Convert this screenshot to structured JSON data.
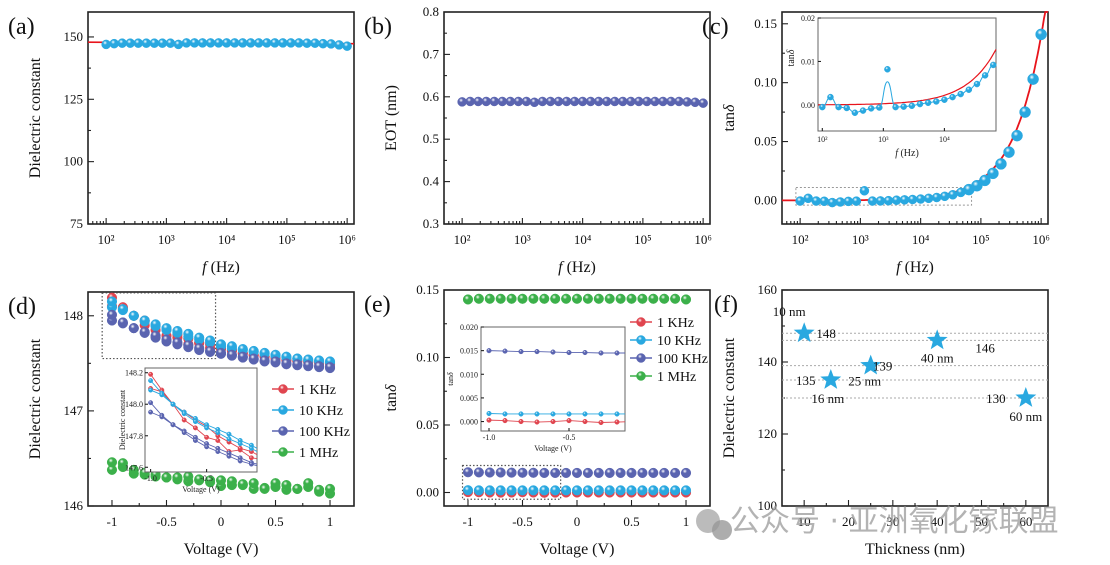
{
  "colors": {
    "blue": "#29a8e0",
    "navy": "#5a64b0",
    "red": "#e0454f",
    "green": "#3bb04a",
    "fit": "#e8141c",
    "grid": "#aaaaaa"
  },
  "watermark": "公众号 · 亚洲氧化镓联盟",
  "chart_data": [
    {
      "panel": "(a)",
      "type": "scatter",
      "xscale": "log",
      "xlabel": "f (Hz)",
      "ylabel": "Dielectric constant",
      "xlim": [
        50,
        1300000
      ],
      "ylim": [
        75,
        160
      ],
      "xticks": [
        {
          "v": 100,
          "label": "10²"
        },
        {
          "v": 1000,
          "label": "10³"
        },
        {
          "v": 10000,
          "label": "10⁴"
        },
        {
          "v": 100000,
          "label": "10⁵"
        },
        {
          "v": 1000000,
          "label": "10⁶"
        }
      ],
      "yticks": [
        75,
        100,
        125,
        150
      ],
      "series": [
        {
          "name": "data",
          "color": "#29a8e0",
          "x_log_range": [
            2,
            6
          ],
          "n": 31,
          "values": [
            147,
            147.3,
            147.5,
            147.5,
            147.5,
            147.5,
            147.5,
            147.5,
            147.5,
            147,
            147.6,
            147.6,
            147.6,
            147.6,
            147.6,
            147.6,
            147.6,
            147.6,
            147.6,
            147.6,
            147.6,
            147.6,
            147.6,
            147.6,
            147.6,
            147.5,
            147.5,
            147.3,
            147.2,
            146.8,
            146.3
          ]
        }
      ],
      "fit": {
        "value": 147.5,
        "color": "#e8141c"
      }
    },
    {
      "panel": "(b)",
      "type": "scatter",
      "xscale": "log",
      "xlabel": "f (Hz)",
      "ylabel": "EOT (nm)",
      "xlim": [
        50,
        1300000
      ],
      "ylim": [
        0.3,
        0.8
      ],
      "xticks": [
        {
          "v": 100,
          "label": "10²"
        },
        {
          "v": 1000,
          "label": "10³"
        },
        {
          "v": 10000,
          "label": "10⁴"
        },
        {
          "v": 100000,
          "label": "10⁵"
        },
        {
          "v": 1000000,
          "label": "10⁶"
        }
      ],
      "yticks": [
        0.3,
        0.4,
        0.5,
        0.6,
        0.7,
        0.8
      ],
      "series": [
        {
          "name": "data",
          "color": "#5a64b0",
          "x_log_range": [
            2,
            6
          ],
          "n": 31,
          "values": [
            0.588,
            0.589,
            0.589,
            0.589,
            0.589,
            0.589,
            0.589,
            0.589,
            0.589,
            0.587,
            0.589,
            0.589,
            0.589,
            0.589,
            0.589,
            0.589,
            0.589,
            0.589,
            0.589,
            0.589,
            0.589,
            0.589,
            0.589,
            0.589,
            0.589,
            0.589,
            0.589,
            0.589,
            0.588,
            0.587,
            0.585
          ]
        }
      ]
    },
    {
      "panel": "(c)",
      "type": "scatter",
      "xscale": "log",
      "xlabel": "f (Hz)",
      "ylabel": "tanδ",
      "xlim": [
        50,
        1300000
      ],
      "ylim": [
        -0.02,
        0.16
      ],
      "xticks": [
        {
          "v": 100,
          "label": "10²"
        },
        {
          "v": 1000,
          "label": "10³"
        },
        {
          "v": 10000,
          "label": "10⁴"
        },
        {
          "v": 100000,
          "label": "10⁵"
        },
        {
          "v": 1000000,
          "label": "10⁶"
        }
      ],
      "yticks": [
        {
          "v": 0,
          "label": "0.00"
        },
        {
          "v": 0.05,
          "label": "0.05"
        },
        {
          "v": 0.1,
          "label": "0.10"
        },
        {
          "v": 0.15,
          "label": "0.15"
        }
      ],
      "series": [
        {
          "name": "data",
          "color": "#29a8e0",
          "x_log_range": [
            2,
            6
          ],
          "n": 31,
          "values": [
            -0.0005,
            0.0018,
            -0.0005,
            -0.0007,
            -0.0018,
            -0.0013,
            -0.0008,
            -0.0006,
            0.0082,
            -0.0005,
            -0.0004,
            -0.0002,
            0.0002,
            0.0005,
            0.0008,
            0.0012,
            0.0018,
            0.0025,
            0.0035,
            0.0048,
            0.0068,
            0.0092,
            0.0125,
            0.017,
            0.023,
            0.031,
            0.041,
            0.055,
            0.075,
            0.103,
            0.141
          ]
        }
      ],
      "fit": {
        "type": "power",
        "color": "#e8141c",
        "coef": 0.14,
        "ref_freq": 1000000,
        "exponent": 0.9
      },
      "zoom_box": {
        "x": [
          85,
          70000
        ],
        "y": [
          -0.004,
          0.011
        ]
      },
      "inset": {
        "xlabel": "f (Hz)",
        "ylabel": "tanδ",
        "xlim": [
          85,
          70000
        ],
        "ylim": [
          -0.006,
          0.02
        ],
        "xticks": [
          {
            "v": 100,
            "label": "10²"
          },
          {
            "v": 1000,
            "label": "10³"
          },
          {
            "v": 10000,
            "label": "10⁴"
          }
        ],
        "yticks": [
          {
            "v": 0,
            "label": "0.00"
          },
          {
            "v": 0.01,
            "label": "0.01"
          },
          {
            "v": 0.02,
            "label": "0.02"
          }
        ]
      }
    },
    {
      "panel": "(d)",
      "type": "scatter",
      "xlabel": "Voltage (V)",
      "ylabel": "Dielectric constant",
      "xlim": [
        -1.22,
        1.22
      ],
      "ylim": [
        146,
        148.25
      ],
      "xticks": [
        -1.0,
        -0.5,
        0.0,
        0.5,
        1.0
      ],
      "yticks": [
        146,
        147,
        148
      ],
      "x": [
        -1.0,
        -0.9,
        -0.8,
        -0.7,
        -0.6,
        -0.5,
        -0.4,
        -0.3,
        -0.2,
        -0.1,
        0.0,
        0.1,
        0.2,
        0.3,
        0.4,
        0.5,
        0.6,
        0.7,
        0.8,
        0.9,
        1.0
      ],
      "series": [
        {
          "name": "1 KHz",
          "color": "#e0454f",
          "fwd": [
            148.19,
            148.09,
            148.0,
            147.9,
            147.85,
            147.79,
            147.77,
            147.7,
            147.71,
            147.66,
            147.65,
            147.63,
            147.6,
            147.58,
            147.57,
            147.55,
            147.53,
            147.52,
            147.51,
            147.5,
            147.49
          ],
          "rev": [
            148.1,
            148.08,
            148.0,
            147.95,
            147.9,
            147.86,
            147.8,
            147.76,
            147.72,
            147.7,
            147.66,
            147.64,
            147.61,
            147.59,
            147.57,
            147.56,
            147.54,
            147.53,
            147.52,
            147.51,
            147.5
          ]
        },
        {
          "name": "10 KHz",
          "color": "#29a8e0",
          "fwd": [
            148.15,
            148.07,
            148.0,
            147.95,
            147.91,
            147.87,
            147.84,
            147.81,
            147.77,
            147.74,
            147.7,
            147.68,
            147.65,
            147.63,
            147.61,
            147.59,
            147.57,
            147.55,
            147.54,
            147.53,
            147.52
          ],
          "rev": [
            148.09,
            148.06,
            148.0,
            147.94,
            147.89,
            147.85,
            147.82,
            147.78,
            147.75,
            147.72,
            147.68,
            147.66,
            147.64,
            147.62,
            147.6,
            147.58,
            147.56,
            147.55,
            147.53,
            147.52,
            147.51
          ]
        },
        {
          "name": "100 KHz",
          "color": "#5a64b0",
          "fwd": [
            148.01,
            147.93,
            147.87,
            147.83,
            147.79,
            147.75,
            147.72,
            147.69,
            147.66,
            147.63,
            147.61,
            147.59,
            147.57,
            147.55,
            147.53,
            147.52,
            147.5,
            147.49,
            147.48,
            147.47,
            147.46
          ],
          "rev": [
            147.95,
            147.92,
            147.87,
            147.82,
            147.77,
            147.73,
            147.7,
            147.67,
            147.64,
            147.62,
            147.6,
            147.58,
            147.56,
            147.54,
            147.52,
            147.51,
            147.49,
            147.48,
            147.47,
            147.46,
            147.45
          ]
        },
        {
          "name": "1 MHz",
          "color": "#3bb04a",
          "fwd": [
            146.46,
            146.45,
            146.38,
            146.35,
            146.33,
            146.3,
            146.3,
            146.31,
            146.28,
            146.27,
            146.27,
            146.26,
            146.23,
            146.24,
            146.18,
            146.24,
            146.22,
            146.18,
            146.24,
            146.17,
            146.18
          ],
          "rev": [
            146.38,
            146.41,
            146.34,
            146.33,
            146.31,
            146.3,
            146.28,
            146.26,
            146.27,
            146.25,
            146.21,
            146.22,
            146.22,
            146.18,
            146.19,
            146.2,
            146.17,
            146.18,
            146.2,
            146.15,
            146.13
          ]
        }
      ],
      "zoom_box": {
        "x": [
          -1.09,
          -0.05
        ],
        "y": [
          147.55,
          148.24
        ]
      },
      "inset": {
        "xlabel": "Voltage (V)",
        "ylabel": "Dielectric constant",
        "xlim": [
          -1.05,
          -0.05
        ],
        "ylim": [
          147.57,
          148.23
        ],
        "xticks": [
          {
            "v": -1.0,
            "label": "-1.0"
          },
          {
            "v": -0.5,
            "label": "-0.5"
          }
        ],
        "yticks": [
          {
            "v": 147.6,
            "label": "147.6"
          },
          {
            "v": 147.8,
            "label": "147.8"
          },
          {
            "v": 148.0,
            "label": "148.0"
          },
          {
            "v": 148.2,
            "label": "148.2"
          }
        ]
      }
    },
    {
      "panel": "(e)",
      "type": "scatter",
      "xlabel": "Voltage (V)",
      "ylabel": "tanδ",
      "xlim": [
        -1.22,
        1.22
      ],
      "ylim": [
        -0.01,
        0.15
      ],
      "xticks": [
        -1.0,
        -0.5,
        0.0,
        0.5,
        1.0
      ],
      "yticks": [
        {
          "v": 0,
          "label": "0.00"
        },
        {
          "v": 0.05,
          "label": "0.05"
        },
        {
          "v": 0.1,
          "label": "0.10"
        },
        {
          "v": 0.15,
          "label": "0.15"
        }
      ],
      "x": [
        -1.0,
        -0.9,
        -0.8,
        -0.7,
        -0.6,
        -0.5,
        -0.4,
        -0.3,
        -0.2,
        -0.1,
        0.0,
        0.1,
        0.2,
        0.3,
        0.4,
        0.5,
        0.6,
        0.7,
        0.8,
        0.9,
        1.0
      ],
      "series": [
        {
          "name": "1 KHz",
          "color": "#e0454f",
          "values": [
            0.0003,
            0.0002,
            0.0,
            -0.0001,
            0.0,
            0.0002,
            0.0,
            -0.0002,
            -0.0001,
            0.0,
            0.0,
            0.0,
            0.0,
            0.0,
            0.0,
            0.0,
            0.0,
            0.0,
            0.0,
            0.0,
            0.0
          ]
        },
        {
          "name": "10 KHz",
          "color": "#29a8e0",
          "values": [
            0.0017,
            0.0016,
            0.0016,
            0.0016,
            0.0016,
            0.0016,
            0.0016,
            0.0016,
            0.0016,
            0.0016,
            0.0016,
            0.0016,
            0.0016,
            0.0016,
            0.0016,
            0.0016,
            0.0016,
            0.0016,
            0.0016,
            0.0016,
            0.0016
          ]
        },
        {
          "name": "100 KHz",
          "color": "#5a64b0",
          "values": [
            0.015,
            0.0149,
            0.0148,
            0.0148,
            0.0147,
            0.0146,
            0.0146,
            0.0145,
            0.0145,
            0.0145,
            0.0145,
            0.0145,
            0.0145,
            0.0145,
            0.0145,
            0.0145,
            0.0145,
            0.0145,
            0.0145,
            0.0145,
            0.0145
          ]
        },
        {
          "name": "1 MHz",
          "color": "#3bb04a",
          "values": [
            0.143,
            0.1435,
            0.1435,
            0.1435,
            0.1435,
            0.1435,
            0.1435,
            0.1435,
            0.1435,
            0.1435,
            0.1435,
            0.1435,
            0.1435,
            0.1435,
            0.1435,
            0.1435,
            0.1435,
            0.1435,
            0.1435,
            0.1435,
            0.143
          ]
        }
      ],
      "zoom_box": {
        "x": [
          -1.05,
          -0.15
        ],
        "y": [
          -0.005,
          0.02
        ]
      },
      "inset": {
        "xlabel": "Voltage (V)",
        "ylabel": "tanδ",
        "xlim": [
          -1.05,
          -0.15
        ],
        "ylim": [
          -0.002,
          0.02
        ],
        "xticks": [
          {
            "v": -1.0,
            "label": "-1.0"
          },
          {
            "v": -0.5,
            "label": "-0.5"
          }
        ],
        "yticks": [
          {
            "v": 0,
            "label": "0.000"
          },
          {
            "v": 0.005,
            "label": "0.005"
          },
          {
            "v": 0.01,
            "label": "0.010"
          },
          {
            "v": 0.015,
            "label": "0.015"
          },
          {
            "v": 0.02,
            "label": "0.020"
          }
        ]
      }
    },
    {
      "panel": "(f)",
      "type": "scatter",
      "xlabel": "Thickness (nm)",
      "ylabel": "Dielectric constant",
      "xlim": [
        5,
        65
      ],
      "ylim": [
        100,
        160
      ],
      "xticks": [
        10,
        20,
        30,
        40,
        50,
        60
      ],
      "yticks": [
        100,
        120,
        140,
        160
      ],
      "points": [
        {
          "x": 10,
          "y": 148,
          "value_label": "148",
          "thickness_label": "10 nm"
        },
        {
          "x": 16,
          "y": 135,
          "value_label": "135",
          "thickness_label": "16 nm"
        },
        {
          "x": 25,
          "y": 139,
          "value_label": "139",
          "thickness_label": "25 nm"
        },
        {
          "x": 40,
          "y": 146,
          "value_label": "146",
          "thickness_label": "40 nm"
        },
        {
          "x": 60,
          "y": 130,
          "value_label": "130",
          "thickness_label": "60 nm"
        }
      ],
      "marker": "star",
      "color": "#29a8e0"
    }
  ]
}
